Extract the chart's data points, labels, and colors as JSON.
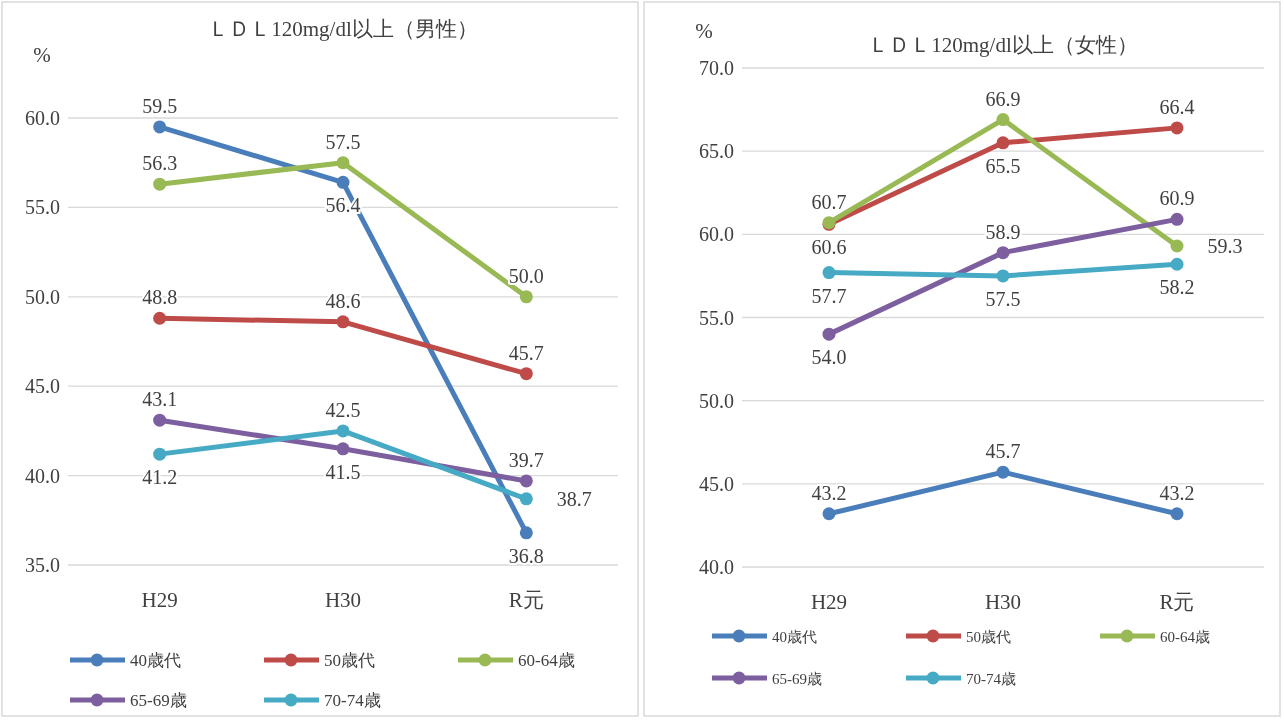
{
  "chart_data": [
    {
      "type": "line",
      "title": "ＬＤＬ120mg/dl以上（男性）",
      "ylabel": "%",
      "categories": [
        "H29",
        "H30",
        "R元"
      ],
      "ylim": [
        35,
        60
      ],
      "yticks": [
        {
          "value": 35,
          "label": "35.0"
        },
        {
          "value": 40,
          "label": "40.0"
        },
        {
          "value": 45,
          "label": "45.0"
        },
        {
          "value": 50,
          "label": "50.0"
        },
        {
          "value": 55,
          "label": "55.0"
        },
        {
          "value": 60,
          "label": "60.0"
        }
      ],
      "grid": "y",
      "legend": "bottom",
      "marker": "circle",
      "series": [
        {
          "name": "40歳代",
          "color": "#4a7ebb",
          "values": [
            59.5,
            56.4,
            36.8
          ],
          "value_labels": [
            "59.5",
            "56.4",
            "36.8"
          ]
        },
        {
          "name": "50歳代",
          "color": "#be4b48",
          "values": [
            48.8,
            48.6,
            45.7
          ],
          "value_labels": [
            "48.8",
            "48.6",
            "45.7"
          ]
        },
        {
          "name": "60-64歳",
          "color": "#98b954",
          "values": [
            56.3,
            57.5,
            50.0
          ],
          "value_labels": [
            "56.3",
            "57.5",
            "50.0"
          ]
        },
        {
          "name": "65-69歳",
          "color": "#7d5fa0",
          "values": [
            43.1,
            41.5,
            39.7
          ],
          "value_labels": [
            "43.1",
            "41.5",
            "39.7"
          ]
        },
        {
          "name": "70-74歳",
          "color": "#46aac5",
          "values": [
            41.2,
            42.5,
            38.7
          ],
          "value_labels": [
            "41.2",
            "42.5",
            "38.7"
          ]
        }
      ]
    },
    {
      "type": "line",
      "title": "ＬＤＬ120mg/dl以上（女性）",
      "ylabel": "%",
      "categories": [
        "H29",
        "H30",
        "R元"
      ],
      "ylim": [
        40,
        70
      ],
      "yticks": [
        {
          "value": 40,
          "label": "40.0"
        },
        {
          "value": 45,
          "label": "45.0"
        },
        {
          "value": 50,
          "label": "50.0"
        },
        {
          "value": 55,
          "label": "55.0"
        },
        {
          "value": 60,
          "label": "60.0"
        },
        {
          "value": 65,
          "label": "65.0"
        },
        {
          "value": 70,
          "label": "70.0"
        }
      ],
      "grid": "y",
      "legend": "bottom",
      "marker": "circle",
      "series": [
        {
          "name": "40歳代",
          "color": "#4a7ebb",
          "values": [
            43.2,
            45.7,
            43.2
          ],
          "value_labels": [
            "43.2",
            "45.7",
            "43.2"
          ]
        },
        {
          "name": "50歳代",
          "color": "#be4b48",
          "values": [
            60.6,
            65.5,
            66.4
          ],
          "value_labels": [
            "60.6",
            "65.5",
            "66.4"
          ]
        },
        {
          "name": "60-64歳",
          "color": "#98b954",
          "values": [
            60.7,
            66.9,
            59.3
          ],
          "value_labels": [
            "60.7",
            "66.9",
            "59.3"
          ]
        },
        {
          "name": "65-69歳",
          "color": "#7d5fa0",
          "values": [
            54.0,
            58.9,
            60.9
          ],
          "value_labels": [
            "54.0",
            "58.9",
            "60.9"
          ]
        },
        {
          "name": "70-74歳",
          "color": "#46aac5",
          "values": [
            57.7,
            57.5,
            58.2
          ],
          "value_labels": [
            "57.7",
            "57.5",
            "58.2"
          ]
        }
      ]
    }
  ]
}
